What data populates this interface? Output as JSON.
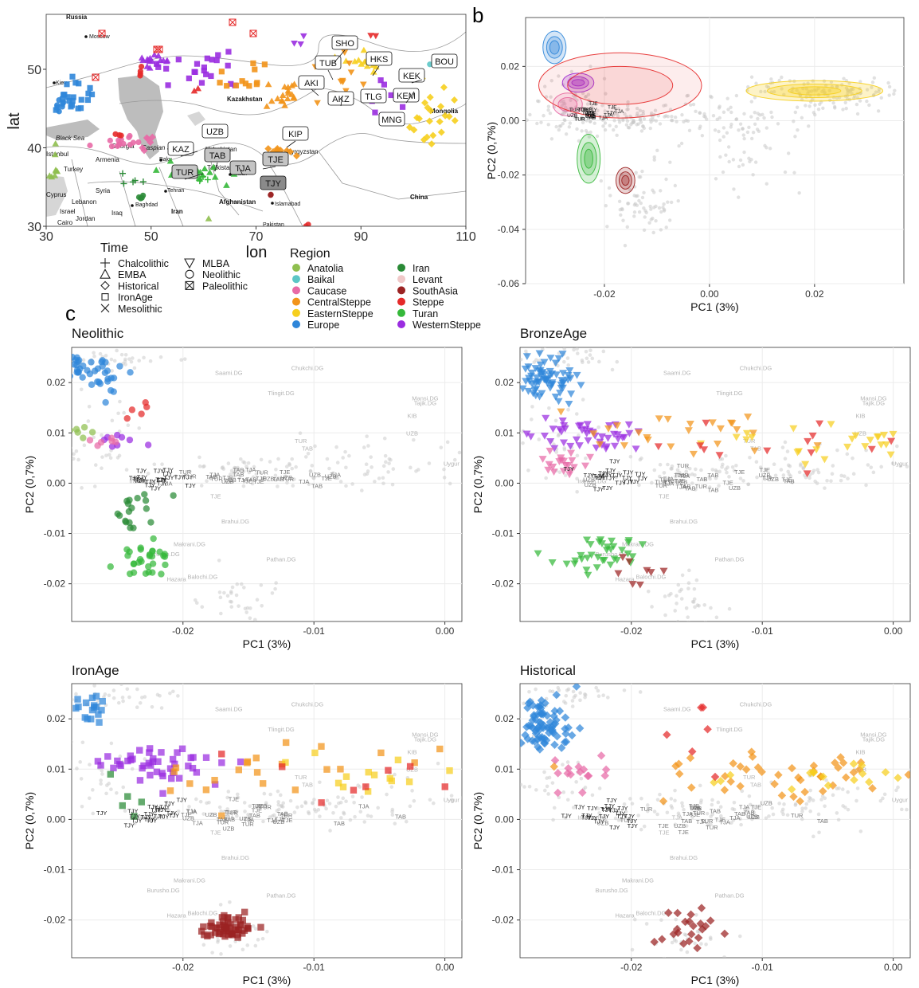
{
  "colors": {
    "Anatolia": "#8fbf4f",
    "Baikal": "#5cc6c6",
    "Caucase": "#e86aa6",
    "CentralSteppe": "#f2941a",
    "EasternSteppe": "#f6cf1e",
    "Europe": "#2f86d9",
    "Iran": "#2a8a36",
    "Levant": "#f0c8c8",
    "SouthAsia": "#9b2323",
    "Steppe": "#e52a2a",
    "Turan": "#35b83a",
    "WesternSteppe": "#9a2de0",
    "reference": "#c8c8c8"
  },
  "panel_letters": {
    "a": "a",
    "b": "b",
    "c": "c"
  },
  "legend": {
    "time_title": "Time",
    "time_items": [
      {
        "label": "Chalcolithic",
        "icon": "plus-icon"
      },
      {
        "label": "EMBA",
        "icon": "triangle-icon"
      },
      {
        "label": "Historical",
        "icon": "diamond-icon"
      },
      {
        "label": "IronAge",
        "icon": "square-icon"
      },
      {
        "label": "Mesolithic",
        "icon": "cross-icon"
      },
      {
        "label": "MLBA",
        "icon": "down-triangle-icon"
      },
      {
        "label": "Neolithic",
        "icon": "circle-icon"
      },
      {
        "label": "Paleolithic",
        "icon": "boxed-cross-icon"
      }
    ],
    "region_title": "Region",
    "region_items": [
      "Anatolia",
      "Baikal",
      "Caucase",
      "CentralSteppe",
      "EasternSteppe",
      "Europe",
      "Iran",
      "Levant",
      "SouthAsia",
      "Steppe",
      "Turan",
      "WesternSteppe"
    ]
  },
  "map": {
    "xlabel": "lon",
    "ylabel": "lat",
    "x_ticks": [
      "30",
      "50",
      "70",
      "90",
      "110"
    ],
    "y_ticks": [
      "30",
      "40",
      "50"
    ],
    "xlim": [
      30,
      110
    ],
    "ylim": [
      30,
      57
    ],
    "place_labels": [
      "Russia",
      "Moscow",
      "Kiev",
      "Kazakhstan",
      "Mongolia",
      "Black Sea",
      "Caspian Sea",
      "Georgia",
      "Armenia",
      "Istanbul",
      "Turkey",
      "Baku",
      "Tehran",
      "Syria",
      "Baghdad",
      "Lebanon",
      "Jordan",
      "Iraq",
      "Iran",
      "Afghanistan",
      "Kabul",
      "Pakistan",
      "Islamabad",
      "Kyrgyzstan",
      "China",
      "Cyprus",
      "Israel",
      "Cairo",
      "Uzbekistan",
      "Tajikistan"
    ],
    "site_labels": [
      "SHO",
      "HKS",
      "TUB",
      "BOU",
      "KEK",
      "AKI",
      "KEM",
      "AKZ",
      "TLG",
      "MNG",
      "UZB",
      "KIP",
      "KAZ",
      "TAB",
      "TJE",
      "TUR",
      "TJA",
      "TJY"
    ]
  },
  "chart_data": [
    {
      "panel": "b",
      "type": "density-contour",
      "xlabel": "PC1 (3%)",
      "ylabel": "PC2 (0,7%)",
      "x_ticks": [
        "-0.02",
        "0.00",
        "0.02"
      ],
      "y_ticks": [
        "0.02",
        "0.00",
        "-0.02",
        "-0.04",
        "-0.06"
      ],
      "xlim": [
        -0.035,
        0.037
      ],
      "ylim": [
        -0.06,
        0.038
      ],
      "densities": [
        {
          "region": "Europe",
          "x": -0.0295,
          "y": 0.027
        },
        {
          "region": "WesternSteppe",
          "x": -0.025,
          "y": 0.014
        },
        {
          "region": "Caucase",
          "x": -0.027,
          "y": 0.006
        },
        {
          "region": "Turan",
          "x": -0.023,
          "y": -0.014
        },
        {
          "region": "SouthAsia",
          "x": -0.016,
          "y": -0.022
        },
        {
          "region": "EasternSteppe",
          "x": 0.02,
          "y": 0.011
        },
        {
          "region": "Steppe",
          "x": -0.017,
          "y": 0.013
        }
      ]
    },
    {
      "panel": "c-Neolithic",
      "type": "scatter",
      "title": "Neolithic",
      "xlabel": "PC1 (3%)",
      "ylabel": "PC2 (0,7%)",
      "x_ticks": [
        "-0.02",
        "-0.01",
        "0.00"
      ],
      "y_ticks": [
        "0.02",
        "0.01",
        "0.00",
        "-0.01",
        "-0.02"
      ],
      "xlim": [
        -0.0285,
        0.0013
      ],
      "ylim": [
        -0.0275,
        0.027
      ],
      "series": [
        {
          "region": "Europe",
          "shape": "circle",
          "center": [
            -0.027,
            0.022
          ],
          "spread": [
            0.0015,
            0.0022
          ],
          "n": 45
        },
        {
          "region": "Iran",
          "shape": "circle",
          "center": [
            -0.0237,
            -0.0055
          ],
          "spread": [
            0.0012,
            0.0035
          ],
          "n": 18
        },
        {
          "region": "Turan",
          "shape": "circle",
          "center": [
            -0.0225,
            -0.015
          ],
          "spread": [
            0.0012,
            0.0022
          ],
          "n": 30
        },
        {
          "region": "WesternSteppe",
          "shape": "circle",
          "center": [
            -0.0245,
            0.0085
          ],
          "spread": [
            0.0012,
            0.0008
          ],
          "n": 8
        },
        {
          "region": "Caucase",
          "shape": "circle",
          "center": [
            -0.0265,
            0.0085
          ],
          "spread": [
            0.001,
            0.0008
          ],
          "n": 6
        },
        {
          "region": "Steppe",
          "shape": "circle",
          "center": [
            -0.0235,
            0.0145
          ],
          "spread": [
            0.0008,
            0.0015
          ],
          "n": 5
        },
        {
          "region": "Anatolia",
          "shape": "circle",
          "center": [
            -0.0278,
            0.0105
          ],
          "spread": [
            0.0005,
            0.0012
          ],
          "n": 6
        }
      ]
    },
    {
      "panel": "c-BronzeAge",
      "type": "scatter",
      "title": "BronzeAge",
      "xlabel": "PC1 (3%)",
      "ylabel": "PC2 (0,7%)",
      "x_ticks": [
        "-0.02",
        "-0.01",
        "0.00"
      ],
      "y_ticks": [
        "0.02",
        "0.01",
        "0.00",
        "-0.01",
        "-0.02"
      ],
      "xlim": [
        -0.0285,
        0.0013
      ],
      "ylim": [
        -0.0275,
        0.027
      ],
      "series": [
        {
          "region": "Europe",
          "shape": "down-triangle",
          "center": [
            -0.0265,
            0.021
          ],
          "spread": [
            0.0015,
            0.0028
          ],
          "n": 70
        },
        {
          "region": "WesternSteppe",
          "shape": "down-triangle",
          "center": [
            -0.0235,
            0.0095
          ],
          "spread": [
            0.0025,
            0.002
          ],
          "n": 45
        },
        {
          "region": "Caucase",
          "shape": "down-triangle",
          "center": [
            -0.0255,
            0.004
          ],
          "spread": [
            0.0015,
            0.0015
          ],
          "n": 20
        },
        {
          "region": "Turan",
          "shape": "down-triangle",
          "center": [
            -0.0225,
            -0.0145
          ],
          "spread": [
            0.0018,
            0.0025
          ],
          "n": 35
        },
        {
          "region": "CentralSteppe",
          "shape": "down-triangle",
          "center": [
            -0.016,
            0.01
          ],
          "spread": [
            0.006,
            0.003
          ],
          "n": 25
        },
        {
          "region": "EasternSteppe",
          "shape": "down-triangle",
          "center": [
            -0.004,
            0.008
          ],
          "spread": [
            0.005,
            0.003
          ],
          "n": 25
        },
        {
          "region": "Steppe",
          "shape": "down-triangle",
          "center": [
            -0.008,
            0.008
          ],
          "spread": [
            0.008,
            0.005
          ],
          "n": 14
        },
        {
          "region": "SouthAsia",
          "shape": "down-triangle",
          "center": [
            -0.019,
            -0.017
          ],
          "spread": [
            0.0025,
            0.003
          ],
          "n": 8
        }
      ]
    },
    {
      "panel": "c-IronAge",
      "type": "scatter",
      "title": "IronAge",
      "xlabel": "PC1 (3%)",
      "ylabel": "PC2 (0,7%)",
      "x_ticks": [
        "-0.02",
        "-0.01",
        "0.00"
      ],
      "y_ticks": [
        "0.02",
        "0.01",
        "0.00",
        "-0.01",
        "-0.02"
      ],
      "xlim": [
        -0.0285,
        0.0013
      ],
      "ylim": [
        -0.0275,
        0.027
      ],
      "series": [
        {
          "region": "Europe",
          "shape": "square",
          "center": [
            -0.027,
            0.022
          ],
          "spread": [
            0.0012,
            0.0018
          ],
          "n": 18
        },
        {
          "region": "WesternSteppe",
          "shape": "square",
          "center": [
            -0.0215,
            0.011
          ],
          "spread": [
            0.0035,
            0.0025
          ],
          "n": 45
        },
        {
          "region": "SouthAsia",
          "shape": "square",
          "center": [
            -0.0165,
            -0.0215
          ],
          "spread": [
            0.0013,
            0.0015
          ],
          "n": 55
        },
        {
          "region": "CentralSteppe",
          "shape": "square",
          "center": [
            -0.013,
            0.01
          ],
          "spread": [
            0.006,
            0.004
          ],
          "n": 22
        },
        {
          "region": "EasternSteppe",
          "shape": "square",
          "center": [
            -0.006,
            0.009
          ],
          "spread": [
            0.006,
            0.003
          ],
          "n": 14
        },
        {
          "region": "Steppe",
          "shape": "square",
          "center": [
            -0.007,
            0.009
          ],
          "spread": [
            0.007,
            0.003
          ],
          "n": 8
        },
        {
          "region": "Iran",
          "shape": "square",
          "center": [
            -0.025,
            0.003
          ],
          "spread": [
            0.001,
            0.003
          ],
          "n": 5
        }
      ]
    },
    {
      "panel": "c-Historical",
      "type": "scatter",
      "title": "Historical",
      "xlabel": "PC1 (3%)",
      "ylabel": "PC2 (0,7%)",
      "x_ticks": [
        "-0.02",
        "-0.01",
        "0.00"
      ],
      "y_ticks": [
        "0.02",
        "0.01",
        "0.00",
        "-0.01",
        "-0.02"
      ],
      "xlim": [
        -0.0285,
        0.0013
      ],
      "ylim": [
        -0.0275,
        0.027
      ],
      "series": [
        {
          "region": "Europe",
          "shape": "diamond",
          "center": [
            -0.027,
            0.019
          ],
          "spread": [
            0.0015,
            0.0035
          ],
          "n": 80
        },
        {
          "region": "Caucase",
          "shape": "diamond",
          "center": [
            -0.024,
            0.009
          ],
          "spread": [
            0.002,
            0.002
          ],
          "n": 15
        },
        {
          "region": "CentralSteppe",
          "shape": "diamond",
          "center": [
            -0.008,
            0.009
          ],
          "spread": [
            0.008,
            0.003
          ],
          "n": 45
        },
        {
          "region": "EasternSteppe",
          "shape": "diamond",
          "center": [
            -0.004,
            0.008
          ],
          "spread": [
            0.006,
            0.003
          ],
          "n": 20
        },
        {
          "region": "SouthAsia",
          "shape": "diamond",
          "center": [
            -0.0155,
            -0.022
          ],
          "spread": [
            0.0015,
            0.0025
          ],
          "n": 22
        },
        {
          "region": "Steppe",
          "shape": "diamond",
          "center": [
            -0.015,
            0.015
          ],
          "spread": [
            0.004,
            0.006
          ],
          "n": 6
        }
      ]
    }
  ],
  "reference_labels": [
    "Saami.DG",
    "Tlingit.DG",
    "Chukchi.DG",
    "Mansi.DG",
    "Tajik.DG",
    "Brahui.DG",
    "Makrani.DG",
    "Burusho.DG",
    "Pathan.DG",
    "Balochi.DG",
    "Hazara",
    "Uygur",
    "Iranian.DG",
    "TUR",
    "TAB",
    "UZB",
    "TJA",
    "TJE",
    "KIB"
  ],
  "sample_labels": [
    "TJY",
    "TJE",
    "TJA",
    "TAB",
    "TUR",
    "UZB"
  ]
}
